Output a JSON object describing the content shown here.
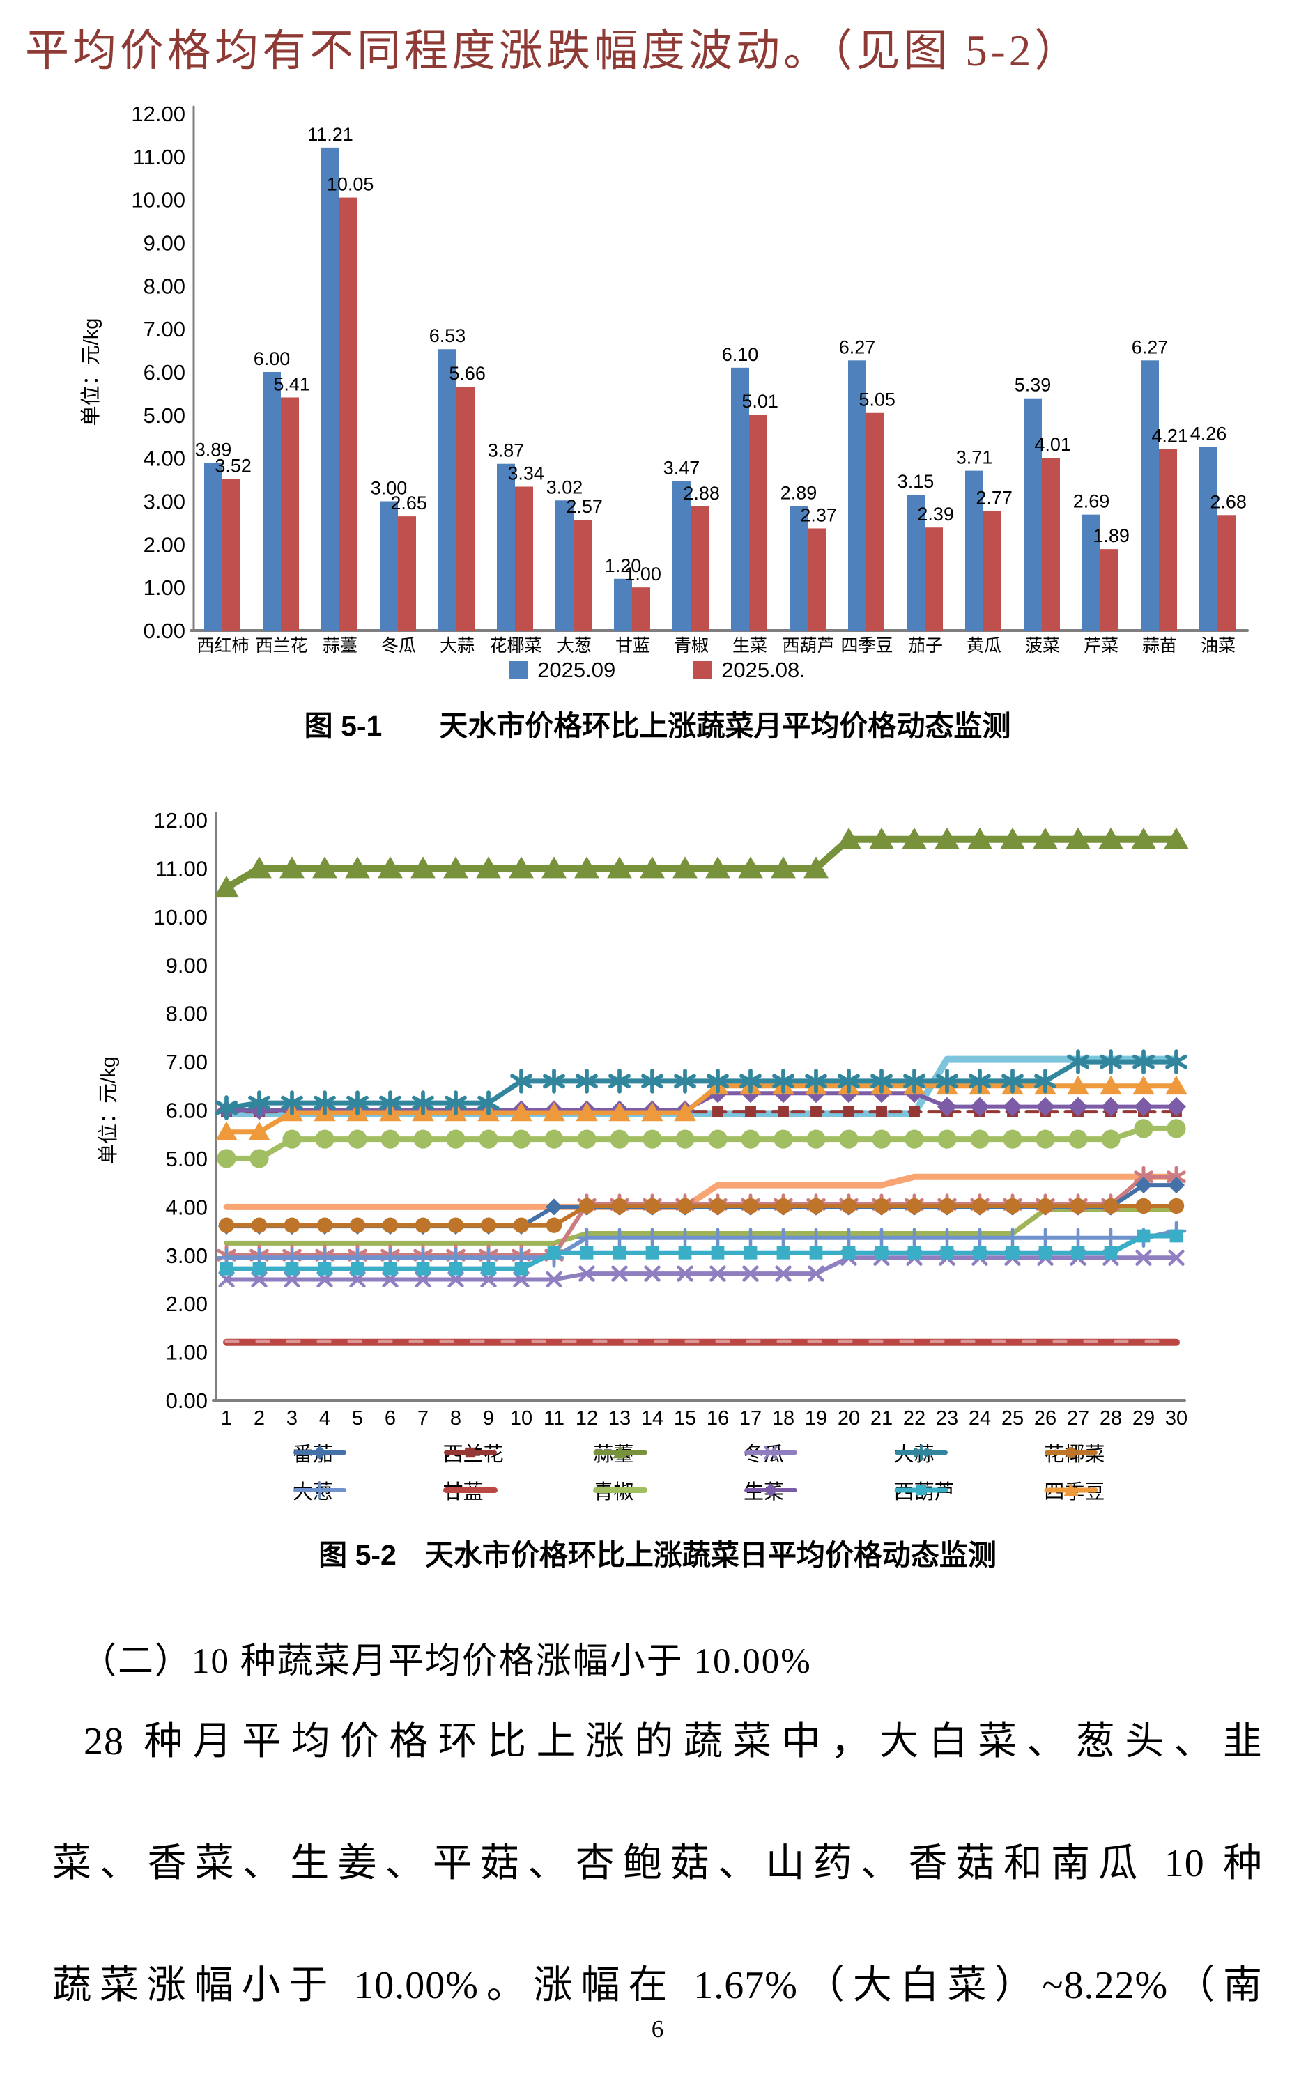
{
  "document": {
    "intro_text": "平均价格均有不同程度涨跌幅度波动。（见图 5-2）",
    "figure1_caption": "图 5-1　　天水市价格环比上涨蔬菜月平均价格动态监测",
    "figure2_caption": "图 5-2　天水市价格环比上涨蔬菜日平均价格动态监测",
    "section_heading": "（二）10 种蔬菜月平均价格涨幅小于 10.00%",
    "paragraph_lines": [
      "28 种月平均价格环比上涨的蔬菜中，大白菜、葱头、韭",
      "菜、香菜、生姜、平菇、杏鲍菇、山药、香菇和南瓜 10 种",
      "蔬菜涨幅小于 10.00%。涨幅在 1.67%（大白菜）~8.22%（南"
    ],
    "page_number": "6"
  },
  "chart_data": [
    {
      "type": "bar",
      "unit_label": "单位：元/kg",
      "categories": [
        "西红柿",
        "西兰花",
        "蒜薹",
        "冬瓜",
        "大蒜",
        "花椰菜",
        "大葱",
        "甘蓝",
        "青椒",
        "生菜",
        "西葫芦",
        "四季豆",
        "茄子",
        "黄瓜",
        "菠菜",
        "芹菜",
        "蒜苗",
        "油菜"
      ],
      "series": [
        {
          "name": "2025.09",
          "color": "#4F81BD",
          "values": [
            3.89,
            6.0,
            11.21,
            3.0,
            6.53,
            3.87,
            3.02,
            1.2,
            3.47,
            6.1,
            2.89,
            6.27,
            3.15,
            3.71,
            5.39,
            2.69,
            6.27,
            4.26
          ]
        },
        {
          "name": "2025.08.",
          "color": "#C0504D",
          "values": [
            3.52,
            5.41,
            10.05,
            2.65,
            5.66,
            3.34,
            2.57,
            1.0,
            2.88,
            5.01,
            2.37,
            5.05,
            2.39,
            2.77,
            4.01,
            1.89,
            4.21,
            2.68
          ]
        }
      ],
      "ylim": [
        0,
        12
      ],
      "ytick_step": 1,
      "grid": false,
      "legend_position": "bottom"
    },
    {
      "type": "line",
      "unit_label": "单位：元/kg",
      "x": [
        1,
        2,
        3,
        4,
        5,
        6,
        7,
        8,
        9,
        10,
        11,
        12,
        13,
        14,
        15,
        16,
        17,
        18,
        19,
        20,
        21,
        22,
        23,
        24,
        25,
        26,
        27,
        28,
        29,
        30
      ],
      "ylim": [
        0,
        12
      ],
      "ytick_step": 1,
      "grid": false,
      "legend_position": "bottom",
      "series": [
        {
          "label": null,
          "color": "#7CC5DD",
          "marker": "none",
          "lw": 10,
          "msize": 0,
          "values": [
            5.93,
            5.93,
            5.93,
            5.93,
            5.93,
            5.93,
            5.93,
            5.93,
            5.93,
            5.93,
            5.93,
            5.93,
            5.93,
            5.93,
            5.93,
            5.93,
            5.93,
            5.93,
            5.93,
            5.93,
            5.93,
            5.93,
            7.05,
            7.05,
            7.05,
            7.05,
            7.05,
            7.05,
            7.05,
            7.05
          ]
        },
        {
          "label": null,
          "color": "#F8A473",
          "marker": "none",
          "lw": 9,
          "msize": 0,
          "values": [
            4,
            4,
            4,
            4,
            4,
            4,
            4,
            4,
            4,
            4,
            4,
            4,
            4,
            4,
            4,
            4.45,
            4.45,
            4.45,
            4.45,
            4.45,
            4.45,
            4.62,
            4.62,
            4.62,
            4.62,
            4.62,
            4.62,
            4.62,
            4.62,
            4.62
          ]
        },
        {
          "label": null,
          "color": "#9FB457",
          "marker": "none",
          "lw": 7,
          "msize": 0,
          "values": [
            3.25,
            3.25,
            3.25,
            3.25,
            3.25,
            3.25,
            3.25,
            3.25,
            3.25,
            3.25,
            3.25,
            3.45,
            3.45,
            3.45,
            3.45,
            3.45,
            3.45,
            3.45,
            3.45,
            3.45,
            3.45,
            3.45,
            3.45,
            3.45,
            3.45,
            3.95,
            3.95,
            3.95,
            3.95,
            3.95
          ]
        },
        {
          "label": null,
          "color": "#CC7C80",
          "marker": "asterisk",
          "lw": 6,
          "msize": 13,
          "values": [
            3,
            3,
            3,
            3,
            3,
            3,
            3,
            3,
            3,
            3,
            3,
            4.05,
            4.05,
            4.05,
            4.05,
            4.05,
            4.05,
            4.05,
            4.05,
            4.05,
            4.05,
            4.05,
            4.05,
            4.05,
            4.05,
            4.05,
            4.05,
            4.05,
            4.62,
            4.62
          ]
        },
        {
          "label": "西兰花",
          "color": "#953735",
          "marker": "square",
          "lw": 5,
          "msize": 11,
          "dash": "16,12",
          "values": [
            5.97,
            5.97,
            5.97,
            5.97,
            5.97,
            5.97,
            5.97,
            5.97,
            5.97,
            5.97,
            5.97,
            5.97,
            5.97,
            5.97,
            5.97,
            5.97,
            5.97,
            5.97,
            5.97,
            5.97,
            5.97,
            5.97,
            5.97,
            5.97,
            5.97,
            5.97,
            5.97,
            5.97,
            5.97,
            5.97
          ]
        },
        {
          "label": "生菜",
          "color": "#7C5CA6",
          "marker": "diamond",
          "lw": 6,
          "msize": 14,
          "values": [
            6,
            6,
            6,
            6,
            6,
            6,
            6,
            6,
            6,
            6,
            6,
            6,
            6,
            6,
            6,
            6.35,
            6.35,
            6.35,
            6.35,
            6.35,
            6.35,
            6.35,
            6.07,
            6.07,
            6.07,
            6.07,
            6.07,
            6.07,
            6.07,
            6.07
          ]
        },
        {
          "label": "冬瓜",
          "color": "#8F7FC0",
          "marker": "x",
          "lw": 6,
          "msize": 12,
          "values": [
            2.5,
            2.5,
            2.5,
            2.5,
            2.5,
            2.5,
            2.5,
            2.5,
            2.5,
            2.5,
            2.5,
            2.62,
            2.62,
            2.62,
            2.62,
            2.62,
            2.62,
            2.62,
            2.62,
            2.95,
            2.95,
            2.95,
            2.95,
            2.95,
            2.95,
            2.95,
            2.95,
            2.95,
            2.95,
            2.95
          ]
        },
        {
          "label": "大葱",
          "color": "#6F92CC",
          "marker": "plus",
          "lw": 6,
          "msize": 12,
          "values": [
            2.95,
            2.95,
            2.95,
            2.95,
            2.95,
            2.95,
            2.95,
            2.95,
            2.95,
            2.95,
            2.95,
            3.36,
            3.36,
            3.36,
            3.36,
            3.36,
            3.36,
            3.36,
            3.36,
            3.36,
            3.36,
            3.36,
            3.36,
            3.36,
            3.36,
            3.36,
            3.36,
            3.36,
            3.36,
            3.5
          ]
        },
        {
          "label": "西葫芦",
          "color": "#39AEC6",
          "marker": "square",
          "lw": 7,
          "msize": 13,
          "values": [
            2.72,
            2.72,
            2.72,
            2.72,
            2.72,
            2.72,
            2.72,
            2.72,
            2.72,
            2.72,
            3.05,
            3.05,
            3.05,
            3.05,
            3.05,
            3.05,
            3.05,
            3.05,
            3.05,
            3.05,
            3.05,
            3.05,
            3.05,
            3.05,
            3.05,
            3.05,
            3.05,
            3.05,
            3.4,
            3.4
          ]
        },
        {
          "label": "番茄",
          "color": "#4472A8",
          "marker": "diamond",
          "lw": 6,
          "msize": 12,
          "values": [
            3.6,
            3.6,
            3.6,
            3.6,
            3.6,
            3.6,
            3.6,
            3.6,
            3.6,
            3.6,
            4,
            4,
            4,
            4,
            4,
            4,
            4,
            4,
            4,
            4,
            4,
            4,
            4,
            4,
            4,
            4,
            4,
            4,
            4.45,
            4.45
          ]
        },
        {
          "label": "花椰菜",
          "color": "#BE7529",
          "marker": "circle",
          "lw": 6,
          "msize": 14,
          "values": [
            3.62,
            3.62,
            3.62,
            3.62,
            3.62,
            3.62,
            3.62,
            3.62,
            3.62,
            3.62,
            3.62,
            4.02,
            4.02,
            4.02,
            4.02,
            4.02,
            4.02,
            4.02,
            4.02,
            4.02,
            4.02,
            4.02,
            4.02,
            4.02,
            4.02,
            4.02,
            4.02,
            4.02,
            4.02,
            4.02
          ]
        },
        {
          "label": "青椒",
          "color": "#A2BE62",
          "marker": "circle",
          "lw": 8,
          "msize": 17,
          "values": [
            5,
            5,
            5.4,
            5.4,
            5.4,
            5.4,
            5.4,
            5.4,
            5.4,
            5.4,
            5.4,
            5.4,
            5.4,
            5.4,
            5.4,
            5.4,
            5.4,
            5.4,
            5.4,
            5.4,
            5.4,
            5.4,
            5.4,
            5.4,
            5.4,
            5.4,
            5.4,
            5.4,
            5.62,
            5.62
          ]
        },
        {
          "label": "四季豆",
          "color": "#EE9A3C",
          "marker": "triangle",
          "lw": 7,
          "msize": 15,
          "values": [
            5.55,
            5.55,
            5.95,
            5.95,
            5.95,
            5.95,
            5.95,
            5.95,
            5.95,
            5.95,
            5.95,
            5.95,
            5.95,
            5.95,
            5.95,
            6.5,
            6.5,
            6.5,
            6.5,
            6.5,
            6.5,
            6.5,
            6.5,
            6.5,
            6.5,
            6.5,
            6.5,
            6.5,
            6.5,
            6.5
          ]
        },
        {
          "label": "大蒜",
          "color": "#31859C",
          "marker": "asterisk",
          "lw": 7,
          "msize": 15,
          "values": [
            6.05,
            6.15,
            6.15,
            6.15,
            6.15,
            6.15,
            6.15,
            6.15,
            6.15,
            6.6,
            6.6,
            6.6,
            6.6,
            6.6,
            6.6,
            6.6,
            6.6,
            6.6,
            6.6,
            6.6,
            6.6,
            6.6,
            6.6,
            6.6,
            6.6,
            6.6,
            7,
            7,
            7,
            7
          ]
        },
        {
          "label": "甘蓝",
          "color": "#BA4743",
          "marker": "none",
          "lw": 10,
          "msize": 0,
          "values": [
            1.2,
            1.2,
            1.2,
            1.2,
            1.2,
            1.2,
            1.2,
            1.2,
            1.2,
            1.2,
            1.2,
            1.2,
            1.2,
            1.2,
            1.2,
            1.2,
            1.2,
            1.2,
            1.2,
            1.2,
            1.2,
            1.2,
            1.2,
            1.2,
            1.2,
            1.2,
            1.2,
            1.2,
            1.2,
            1.2
          ]
        },
        {
          "label": null,
          "color": "#DA9694",
          "marker": "none",
          "lw": 5,
          "msize": 0,
          "dash": "16,28",
          "values": [
            1.22,
            1.22,
            1.22,
            1.22,
            1.22,
            1.22,
            1.22,
            1.22,
            1.22,
            1.22,
            1.22,
            1.22,
            1.22,
            1.22,
            1.22,
            1.22,
            1.22,
            1.22,
            1.22,
            1.22,
            1.22,
            1.22,
            1.22,
            1.22,
            1.22,
            1.22,
            1.22,
            1.22,
            1.22,
            1.22
          ]
        },
        {
          "label": "蒜薹",
          "color": "#78923C",
          "marker": "triangle",
          "lw": 10,
          "msize": 17,
          "values": [
            10.6,
            11,
            11,
            11,
            11,
            11,
            11,
            11,
            11,
            11,
            11,
            11,
            11,
            11,
            11,
            11,
            11,
            11,
            11,
            11.6,
            11.6,
            11.6,
            11.6,
            11.6,
            11.6,
            11.6,
            11.6,
            11.6,
            11.6,
            11.6
          ]
        }
      ],
      "legend": [
        {
          "label": "番茄",
          "color": "#4472A8",
          "marker": "diamond",
          "lw": 6
        },
        {
          "label": "西兰花",
          "color": "#953735",
          "marker": "square",
          "lw": 6
        },
        {
          "label": "蒜薹",
          "color": "#78923C",
          "marker": "triangle",
          "lw": 7
        },
        {
          "label": "冬瓜",
          "color": "#8F7FC0",
          "marker": "x",
          "lw": 6
        },
        {
          "label": "大蒜",
          "color": "#31859C",
          "marker": "asterisk",
          "lw": 6
        },
        {
          "label": "花椰菜",
          "color": "#BE7529",
          "marker": "circle",
          "lw": 6
        },
        {
          "label": "大葱",
          "color": "#6F92CC",
          "marker": "plus",
          "lw": 6
        },
        {
          "label": "甘蓝",
          "color": "#BA4743",
          "marker": "none",
          "lw": 8
        },
        {
          "label": "青椒",
          "color": "#A2BE62",
          "marker": "none",
          "lw": 8
        },
        {
          "label": "生菜",
          "color": "#7C5CA6",
          "marker": "diamond",
          "lw": 6
        },
        {
          "label": "西葫芦",
          "color": "#39AEC6",
          "marker": "square",
          "lw": 7
        },
        {
          "label": "四季豆",
          "color": "#EE9A3C",
          "marker": "triangle",
          "lw": 7
        }
      ]
    }
  ]
}
